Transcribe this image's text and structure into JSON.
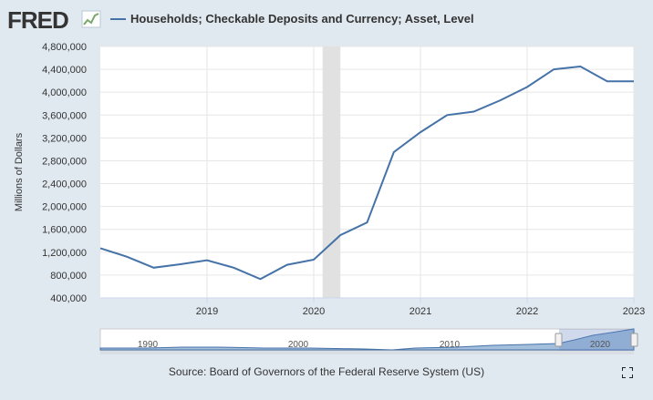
{
  "header": {
    "logo_text": "FRED",
    "legend_label": "Households; Checkable Deposits and Currency; Asset, Level"
  },
  "chart_data": {
    "type": "line",
    "title": "Households; Checkable Deposits and Currency; Asset, Level",
    "xlabel": "",
    "ylabel": "Millions of Dollars",
    "ylim": [
      400000,
      4800000
    ],
    "xlim": [
      2018.0,
      2023.0
    ],
    "yticks": [
      400000,
      800000,
      1200000,
      1600000,
      2000000,
      2400000,
      2800000,
      3200000,
      3600000,
      4000000,
      4400000,
      4800000
    ],
    "ytick_labels": [
      "400,000",
      "800,000",
      "1,200,000",
      "1,600,000",
      "2,000,000",
      "2,400,000",
      "2,800,000",
      "3,200,000",
      "3,600,000",
      "4,000,000",
      "4,400,000",
      "4,800,000"
    ],
    "xticks": [
      2019,
      2020,
      2021,
      2022,
      2023
    ],
    "xtick_labels": [
      "2019",
      "2020",
      "2021",
      "2022",
      "2023"
    ],
    "recession": [
      2020.083,
      2020.25
    ],
    "series": [
      {
        "name": "Households; Checkable Deposits and Currency; Asset, Level",
        "color": "#4572a7",
        "x": [
          2018.0,
          2018.25,
          2018.5,
          2018.75,
          2019.0,
          2019.25,
          2019.5,
          2019.75,
          2020.0,
          2020.25,
          2020.5,
          2020.75,
          2021.0,
          2021.25,
          2021.5,
          2021.75,
          2022.0,
          2022.25,
          2022.5,
          2022.75,
          2023.0
        ],
        "values": [
          1270000,
          1120000,
          930000,
          990000,
          1060000,
          930000,
          730000,
          980000,
          1070000,
          1500000,
          1720000,
          2950000,
          3300000,
          3600000,
          3660000,
          3860000,
          4090000,
          4400000,
          4450000,
          4190000,
          4190000
        ]
      }
    ],
    "navigator": {
      "labels": [
        "1990",
        "2000",
        "2010",
        "2020"
      ]
    }
  },
  "footer": {
    "source_text": "Source: Board of Governors of the Federal Reserve System (US)"
  },
  "colors": {
    "background": "#e1e9f0",
    "plot_background": "#ffffff",
    "line": "#4572a7",
    "recession": "#e1e1e1"
  }
}
